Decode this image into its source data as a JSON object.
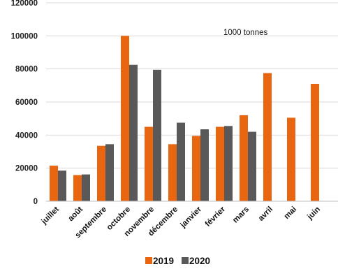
{
  "chart_data": {
    "type": "bar",
    "categories": [
      "juillet",
      "août",
      "septembre",
      "octobre",
      "novembre",
      "décembre",
      "janvier",
      "février",
      "mars",
      "avril",
      "mai",
      "juin"
    ],
    "series": [
      {
        "name": "2019",
        "color": "#e8660f",
        "values": [
          21500,
          15800,
          33500,
          100000,
          45000,
          34500,
          39500,
          45000,
          52000,
          77500,
          50500,
          71000
        ]
      },
      {
        "name": "2020",
        "color": "#595959",
        "values": [
          18500,
          16200,
          34500,
          82500,
          79500,
          47500,
          43500,
          45500,
          42000,
          null,
          null,
          null
        ]
      }
    ],
    "annotation": "1000 tonnes",
    "yticks": [
      0,
      20000,
      40000,
      60000,
      80000,
      100000,
      120000
    ],
    "ylim": [
      0,
      120000
    ],
    "grid": true,
    "legend_position": "bottom"
  }
}
